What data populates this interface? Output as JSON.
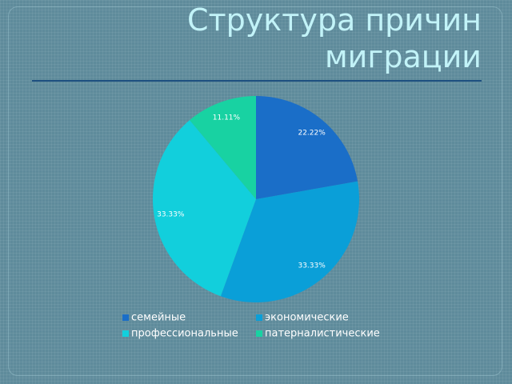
{
  "chart_data": {
    "type": "pie",
    "title": "Структура причин миграции",
    "categories": [
      "семейные",
      "экономические",
      "профессиональные",
      "патерналистические"
    ],
    "values": [
      22.22,
      33.33,
      33.33,
      11.11
    ],
    "value_labels": [
      "22.22%",
      "33.33%",
      "33.33%",
      "11.11%"
    ],
    "colors": [
      "#1a6ec8",
      "#0a9fd8",
      "#12cfdc",
      "#18d2a2"
    ],
    "legend": "bottom"
  }
}
